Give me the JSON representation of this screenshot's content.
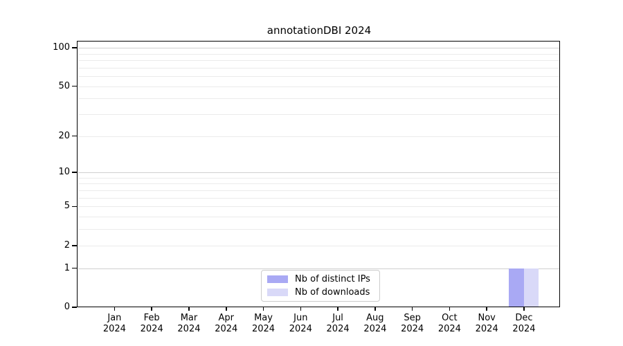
{
  "chart_data": {
    "type": "bar",
    "title": "annotationDBI 2024",
    "categories": [
      {
        "month": "Jan",
        "year": "2024"
      },
      {
        "month": "Feb",
        "year": "2024"
      },
      {
        "month": "Mar",
        "year": "2024"
      },
      {
        "month": "Apr",
        "year": "2024"
      },
      {
        "month": "May",
        "year": "2024"
      },
      {
        "month": "Jun",
        "year": "2024"
      },
      {
        "month": "Jul",
        "year": "2024"
      },
      {
        "month": "Aug",
        "year": "2024"
      },
      {
        "month": "Sep",
        "year": "2024"
      },
      {
        "month": "Oct",
        "year": "2024"
      },
      {
        "month": "Nov",
        "year": "2024"
      },
      {
        "month": "Dec",
        "year": "2024"
      }
    ],
    "series": [
      {
        "name": "Nb of distinct IPs",
        "color": "#a9a9f4",
        "values": [
          0,
          0,
          0,
          0,
          0,
          0,
          0,
          0,
          0,
          0,
          0,
          1
        ]
      },
      {
        "name": "Nb of downloads",
        "color": "#d9d9f8",
        "values": [
          0,
          0,
          0,
          0,
          0,
          0,
          0,
          0,
          0,
          0,
          0,
          1
        ]
      }
    ],
    "y_axis": {
      "scale": "log1p",
      "min": 0,
      "max": 110.5,
      "ticks": [
        100,
        50,
        20,
        10,
        5,
        2,
        1,
        0
      ],
      "major_gridlines": [
        100,
        10,
        1
      ],
      "minor_gridlines": [
        90,
        80,
        70,
        60,
        50,
        40,
        30,
        20,
        9,
        8,
        7,
        6,
        5,
        4,
        3,
        2
      ]
    },
    "legend_position": "bottom-center",
    "grid": true
  },
  "colors": {
    "background": "#ffffff",
    "axis": "#000000",
    "major_grid": "#cfcfcf",
    "minor_grid": "#ebebeb",
    "legend_border": "#cccccc"
  }
}
